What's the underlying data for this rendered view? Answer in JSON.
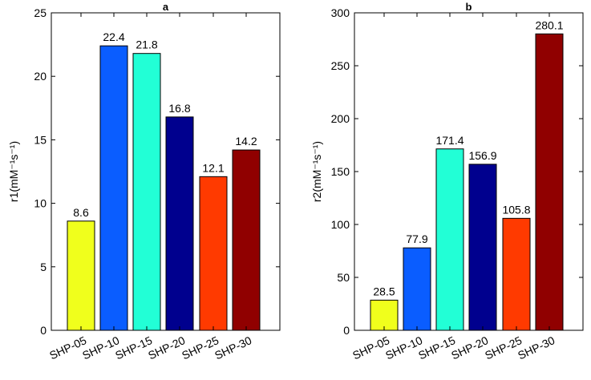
{
  "chart_data": [
    {
      "panel": "a",
      "type": "bar",
      "title": "a",
      "ylabel": "r1(mM⁻¹s⁻¹)",
      "xlabel": "",
      "categories": [
        "SHP-05",
        "SHP-10",
        "SHP-15",
        "SHP-20",
        "SHP-25",
        "SHP-30"
      ],
      "values": [
        8.6,
        22.4,
        21.8,
        16.8,
        12.1,
        14.2
      ],
      "value_labels": [
        "8.6",
        "22.4",
        "21.8",
        "16.8",
        "12.1",
        "14.2"
      ],
      "colors": [
        "#f0ff1c",
        "#0a5dff",
        "#22ffd6",
        "#00008e",
        "#ff3a00",
        "#900000"
      ],
      "ylim": [
        0,
        25
      ],
      "yticks": [
        0,
        5,
        10,
        15,
        20,
        25
      ],
      "grid": false
    },
    {
      "panel": "b",
      "type": "bar",
      "title": "b",
      "ylabel": "r2(mM⁻¹s⁻¹)",
      "xlabel": "",
      "categories": [
        "SHP-05",
        "SHP-10",
        "SHP-15",
        "SHP-20",
        "SHP-25",
        "SHP-30"
      ],
      "values": [
        28.5,
        77.9,
        171.4,
        156.9,
        105.8,
        280.1
      ],
      "value_labels": [
        "28.5",
        "77.9",
        "171.4",
        "156.9",
        "105.8",
        "280.1"
      ],
      "colors": [
        "#f0ff1c",
        "#0a5dff",
        "#22ffd6",
        "#00008e",
        "#ff3a00",
        "#900000"
      ],
      "ylim": [
        0,
        300
      ],
      "yticks": [
        0,
        50,
        100,
        150,
        200,
        250,
        300
      ],
      "grid": false
    }
  ]
}
